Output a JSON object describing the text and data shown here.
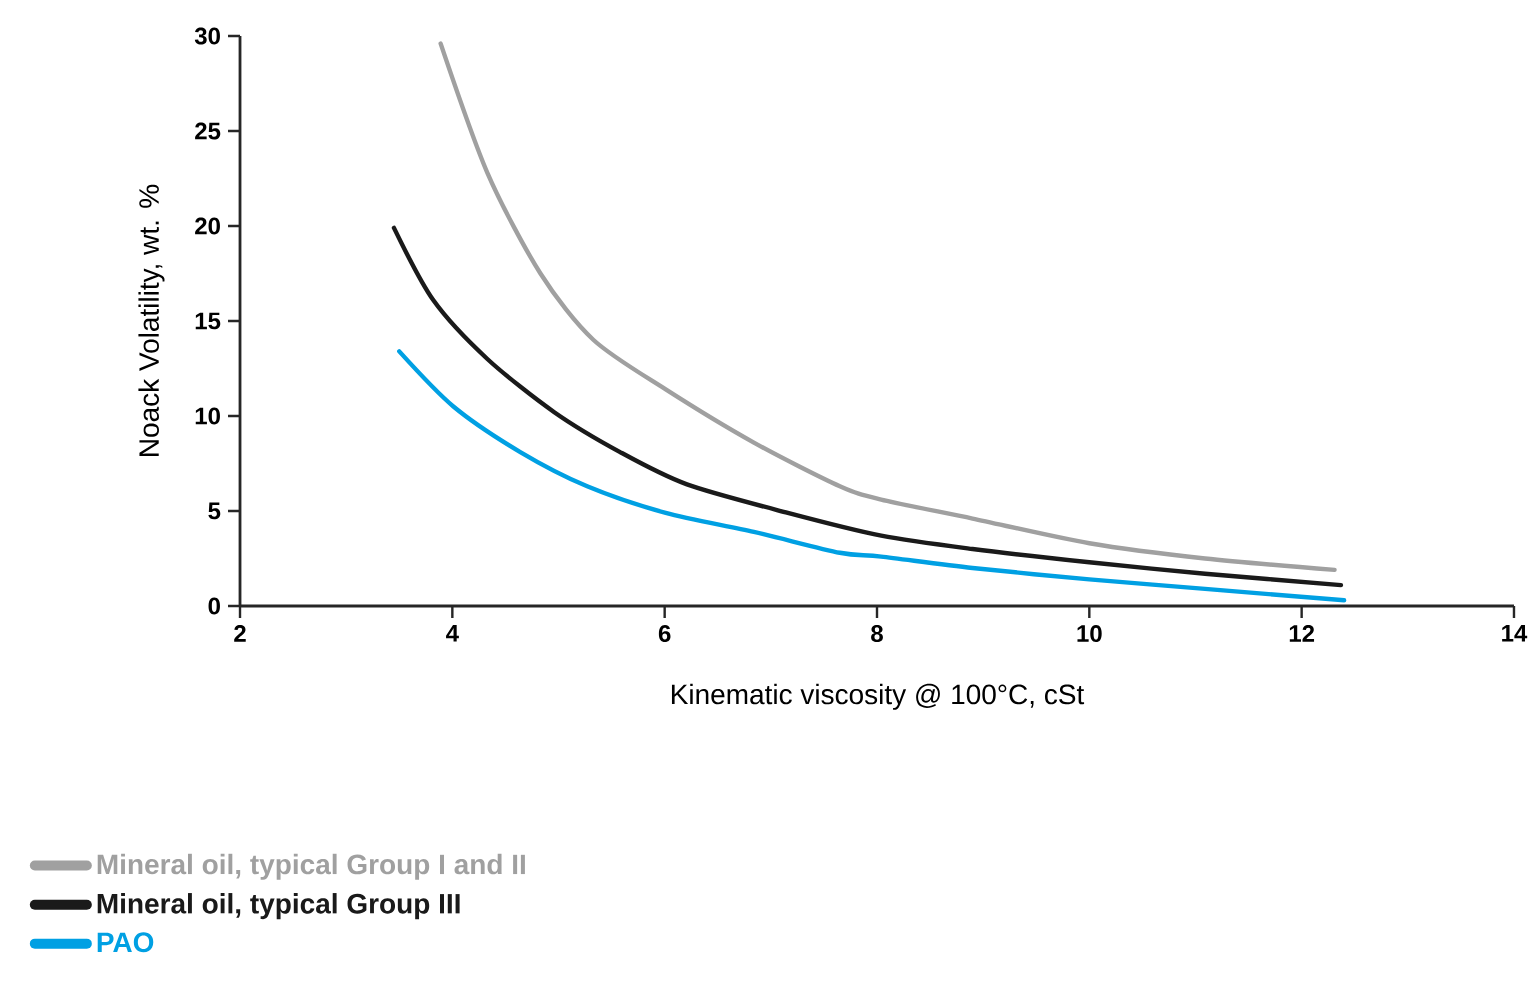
{
  "chart_data": {
    "type": "line",
    "xlabel": "Kinematic viscosity @ 100°C, cSt",
    "ylabel": "Noack Volatility, wt. %",
    "xlim": [
      2,
      14
    ],
    "ylim": [
      0,
      30
    ],
    "xticks": [
      2,
      4,
      6,
      8,
      10,
      12,
      14
    ],
    "yticks": [
      0,
      5,
      10,
      15,
      20,
      25,
      30
    ],
    "grid": false,
    "legend": "bottom left",
    "marker": "none",
    "line_style": "solid",
    "series": [
      {
        "name": "Mineral oil, typical Group I and II",
        "color": "#a0a0a0",
        "x": [
          3.89,
          4.33,
          4.83,
          5.33,
          6.01,
          6.84,
          7.65,
          8.04,
          8.9,
          10,
          11.09,
          12.31
        ],
        "values": [
          29.6,
          22.8,
          17.5,
          14.0,
          11.4,
          8.6,
          6.3,
          5.6,
          4.6,
          3.3,
          2.5,
          1.9
        ]
      },
      {
        "name": "Mineral oil, typical Group III",
        "color": "#1a1a1a",
        "x": [
          3.45,
          3.82,
          4.33,
          4.96,
          5.58,
          6.21,
          7.16,
          8.04,
          8.9,
          10,
          11.09,
          12.37
        ],
        "values": [
          19.9,
          16.1,
          13.0,
          10.2,
          8.1,
          6.4,
          4.9,
          3.7,
          3.0,
          2.3,
          1.7,
          1.1
        ]
      },
      {
        "name": "PAO",
        "color": "#00a0e3",
        "x": [
          3.5,
          4.01,
          4.64,
          5.27,
          6.01,
          6.84,
          7.65,
          8.04,
          8.9,
          10,
          11.09,
          12.4
        ],
        "values": [
          13.4,
          10.5,
          8.1,
          6.3,
          4.9,
          3.9,
          2.8,
          2.6,
          2.0,
          1.4,
          0.9,
          0.3
        ]
      }
    ]
  }
}
